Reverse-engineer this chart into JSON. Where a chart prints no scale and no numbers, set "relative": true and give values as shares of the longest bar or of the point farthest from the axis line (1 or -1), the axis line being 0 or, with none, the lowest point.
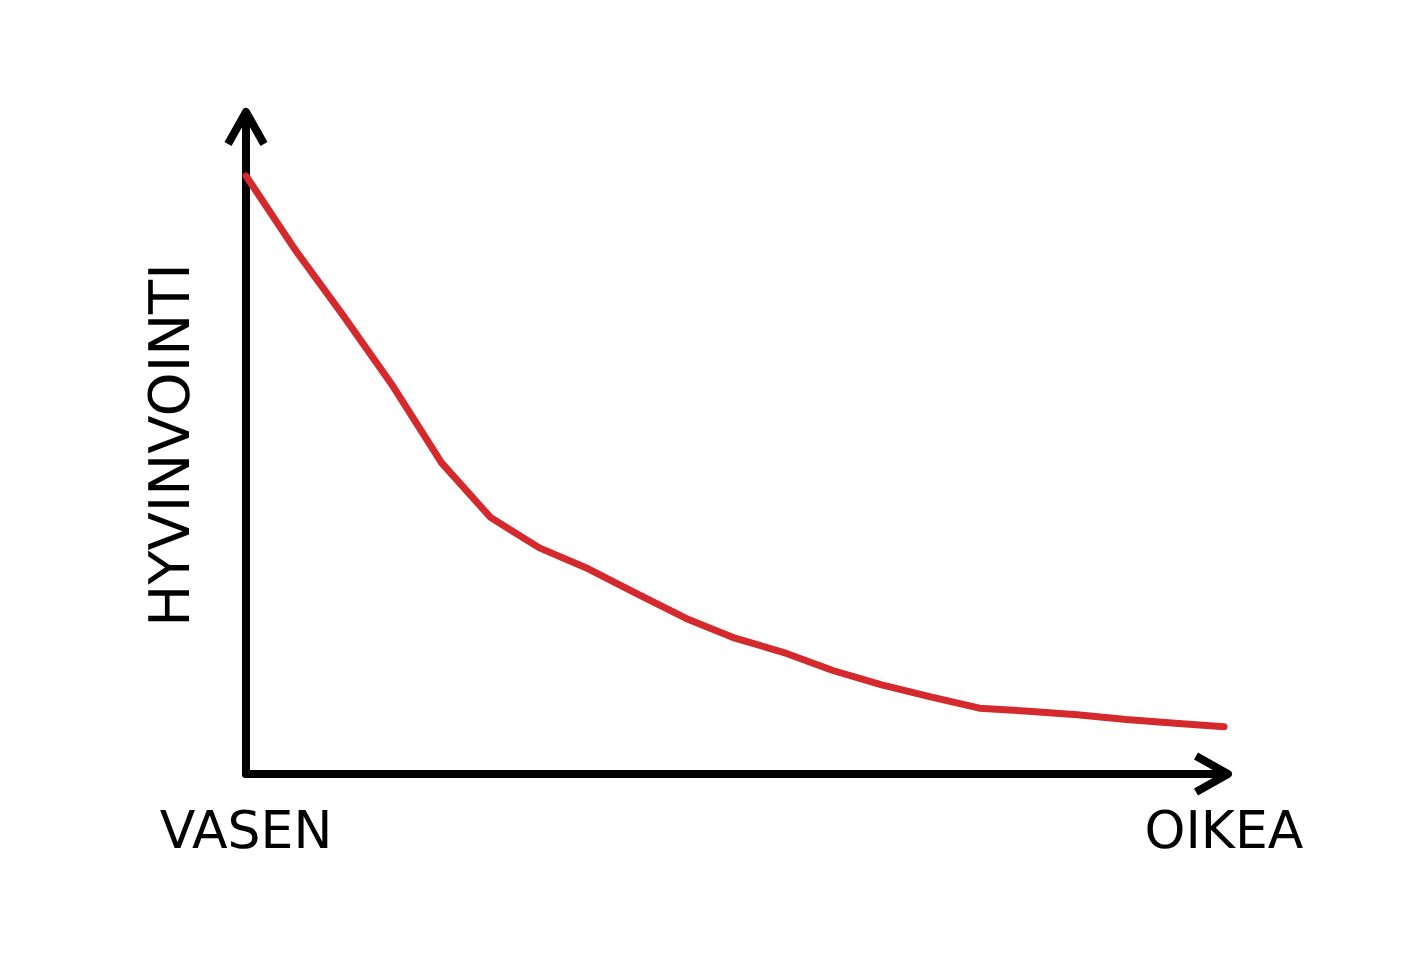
{
  "chart_data": {
    "type": "line",
    "ylabel": "HYVINVOINTI",
    "relative": true,
    "grid": false,
    "marker": "none",
    "line_style": "solid",
    "categories": [
      "VASEN",
      null,
      null,
      null,
      null,
      null,
      null,
      null,
      null,
      null,
      null,
      null,
      null,
      null,
      null,
      null,
      null,
      null,
      null,
      null,
      "OIKEA"
    ],
    "series": [
      {
        "color": "#d42a2e",
        "values": [
          1.0,
          0.877,
          0.765,
          0.649,
          0.52,
          0.429,
          0.378,
          0.343,
          0.301,
          0.26,
          0.227,
          0.203,
          0.173,
          0.149,
          0.129,
          0.11,
          0.105,
          0.099,
          0.091,
          0.085,
          0.079
        ]
      }
    ]
  }
}
